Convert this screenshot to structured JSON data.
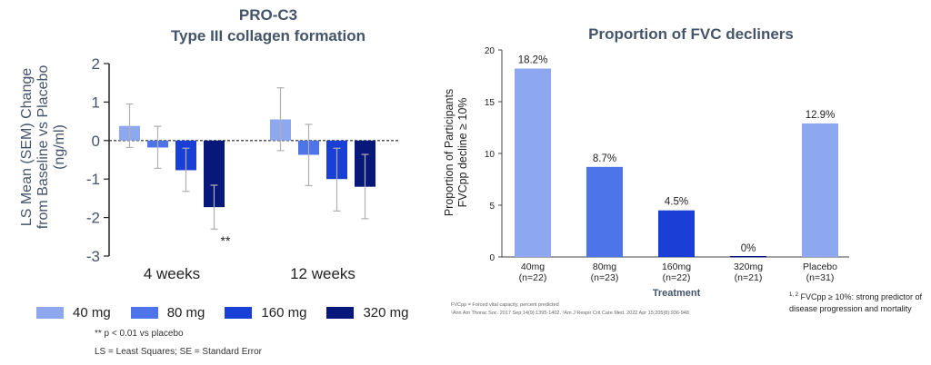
{
  "colors": {
    "40mg": "#8ea8f0",
    "80mg": "#4d74e8",
    "160mg": "#1a3fd6",
    "320mg": "#08187a",
    "axis_text": "#44546a"
  },
  "left_chart": {
    "title_line1": "PRO-C3",
    "title_line2": "Type III collagen formation",
    "ylabel_line1": "LS Mean (SEM) Change",
    "ylabel_line2": "from  Baseline vs Placebo",
    "ylabel_line3": "(ng/ml)",
    "significance_label": "**",
    "legend": [
      "40 mg",
      "80 mg",
      "160 mg",
      "320 mg"
    ],
    "footnote_sig": "** p < 0.01 vs placebo",
    "footnote_ls": "LS = Least Squares; SE = Standard Error"
  },
  "right_chart": {
    "title": "Proportion of FVC decliners",
    "ylabel_line1": "Proportion of Participants",
    "ylabel_line2": "FVCpp decline ≥ 10%",
    "xlabel": "Treatment",
    "footnote_line1": "FVCpp = Forced vital capacity, percent predicted",
    "footnote_line2": "¹Ann Am Thorac Soc. 2017 Sep;14(9):1395-1402. ²Am J Respir Crit Care Med. 2022 Apr 15;205(8):936-948",
    "criteria_sup": "1, 2",
    "criteria_line1": "FVCpp ≥ 10%: strong predictor of",
    "criteria_line2": "disease progression and mortality"
  },
  "chart_data": [
    {
      "type": "bar",
      "title": "PRO-C3 Type III collagen formation",
      "ylabel": "LS Mean (SEM) Change from Baseline vs Placebo (ng/ml)",
      "categories": [
        "4 weeks",
        "12 weeks"
      ],
      "ylim": [
        -3,
        2
      ],
      "yticks": [
        -3,
        -2,
        -1,
        0,
        1,
        2
      ],
      "series": [
        {
          "name": "40 mg",
          "values": [
            0.38,
            0.55
          ],
          "err_low": [
            -0.18,
            -0.26
          ],
          "err_high": [
            0.95,
            1.37
          ]
        },
        {
          "name": "80 mg",
          "values": [
            -0.18,
            -0.37
          ],
          "err_low": [
            -0.72,
            -1.17
          ],
          "err_high": [
            0.37,
            0.42
          ]
        },
        {
          "name": "160 mg",
          "values": [
            -0.77,
            -1.0
          ],
          "err_low": [
            -1.32,
            -1.83
          ],
          "err_high": [
            -0.2,
            -0.2
          ]
        },
        {
          "name": "320 mg",
          "values": [
            -1.73,
            -1.2
          ],
          "err_low": [
            -2.3,
            -2.03
          ],
          "err_high": [
            -1.16,
            -0.36
          ]
        }
      ],
      "legend_position": "bottom",
      "grid": false
    },
    {
      "type": "bar",
      "title": "Proportion of FVC decliners",
      "xlabel": "Treatment",
      "ylabel": "Proportion of Participants FVCpp decline ≥ 10%",
      "categories": [
        "40mg",
        "80mg",
        "160mg",
        "320mg",
        "Placebo"
      ],
      "category_n": [
        "(n=22)",
        "(n=23)",
        "(n=22)",
        "(n=21)",
        "(n=31)"
      ],
      "values": [
        18.2,
        8.7,
        4.5,
        0,
        12.9
      ],
      "value_labels": [
        "18.2%",
        "8.7%",
        "4.5%",
        "0%",
        "12.9%"
      ],
      "ylim": [
        0,
        20
      ],
      "yticks": [
        0,
        5,
        10,
        15,
        20
      ],
      "grid": false
    }
  ]
}
